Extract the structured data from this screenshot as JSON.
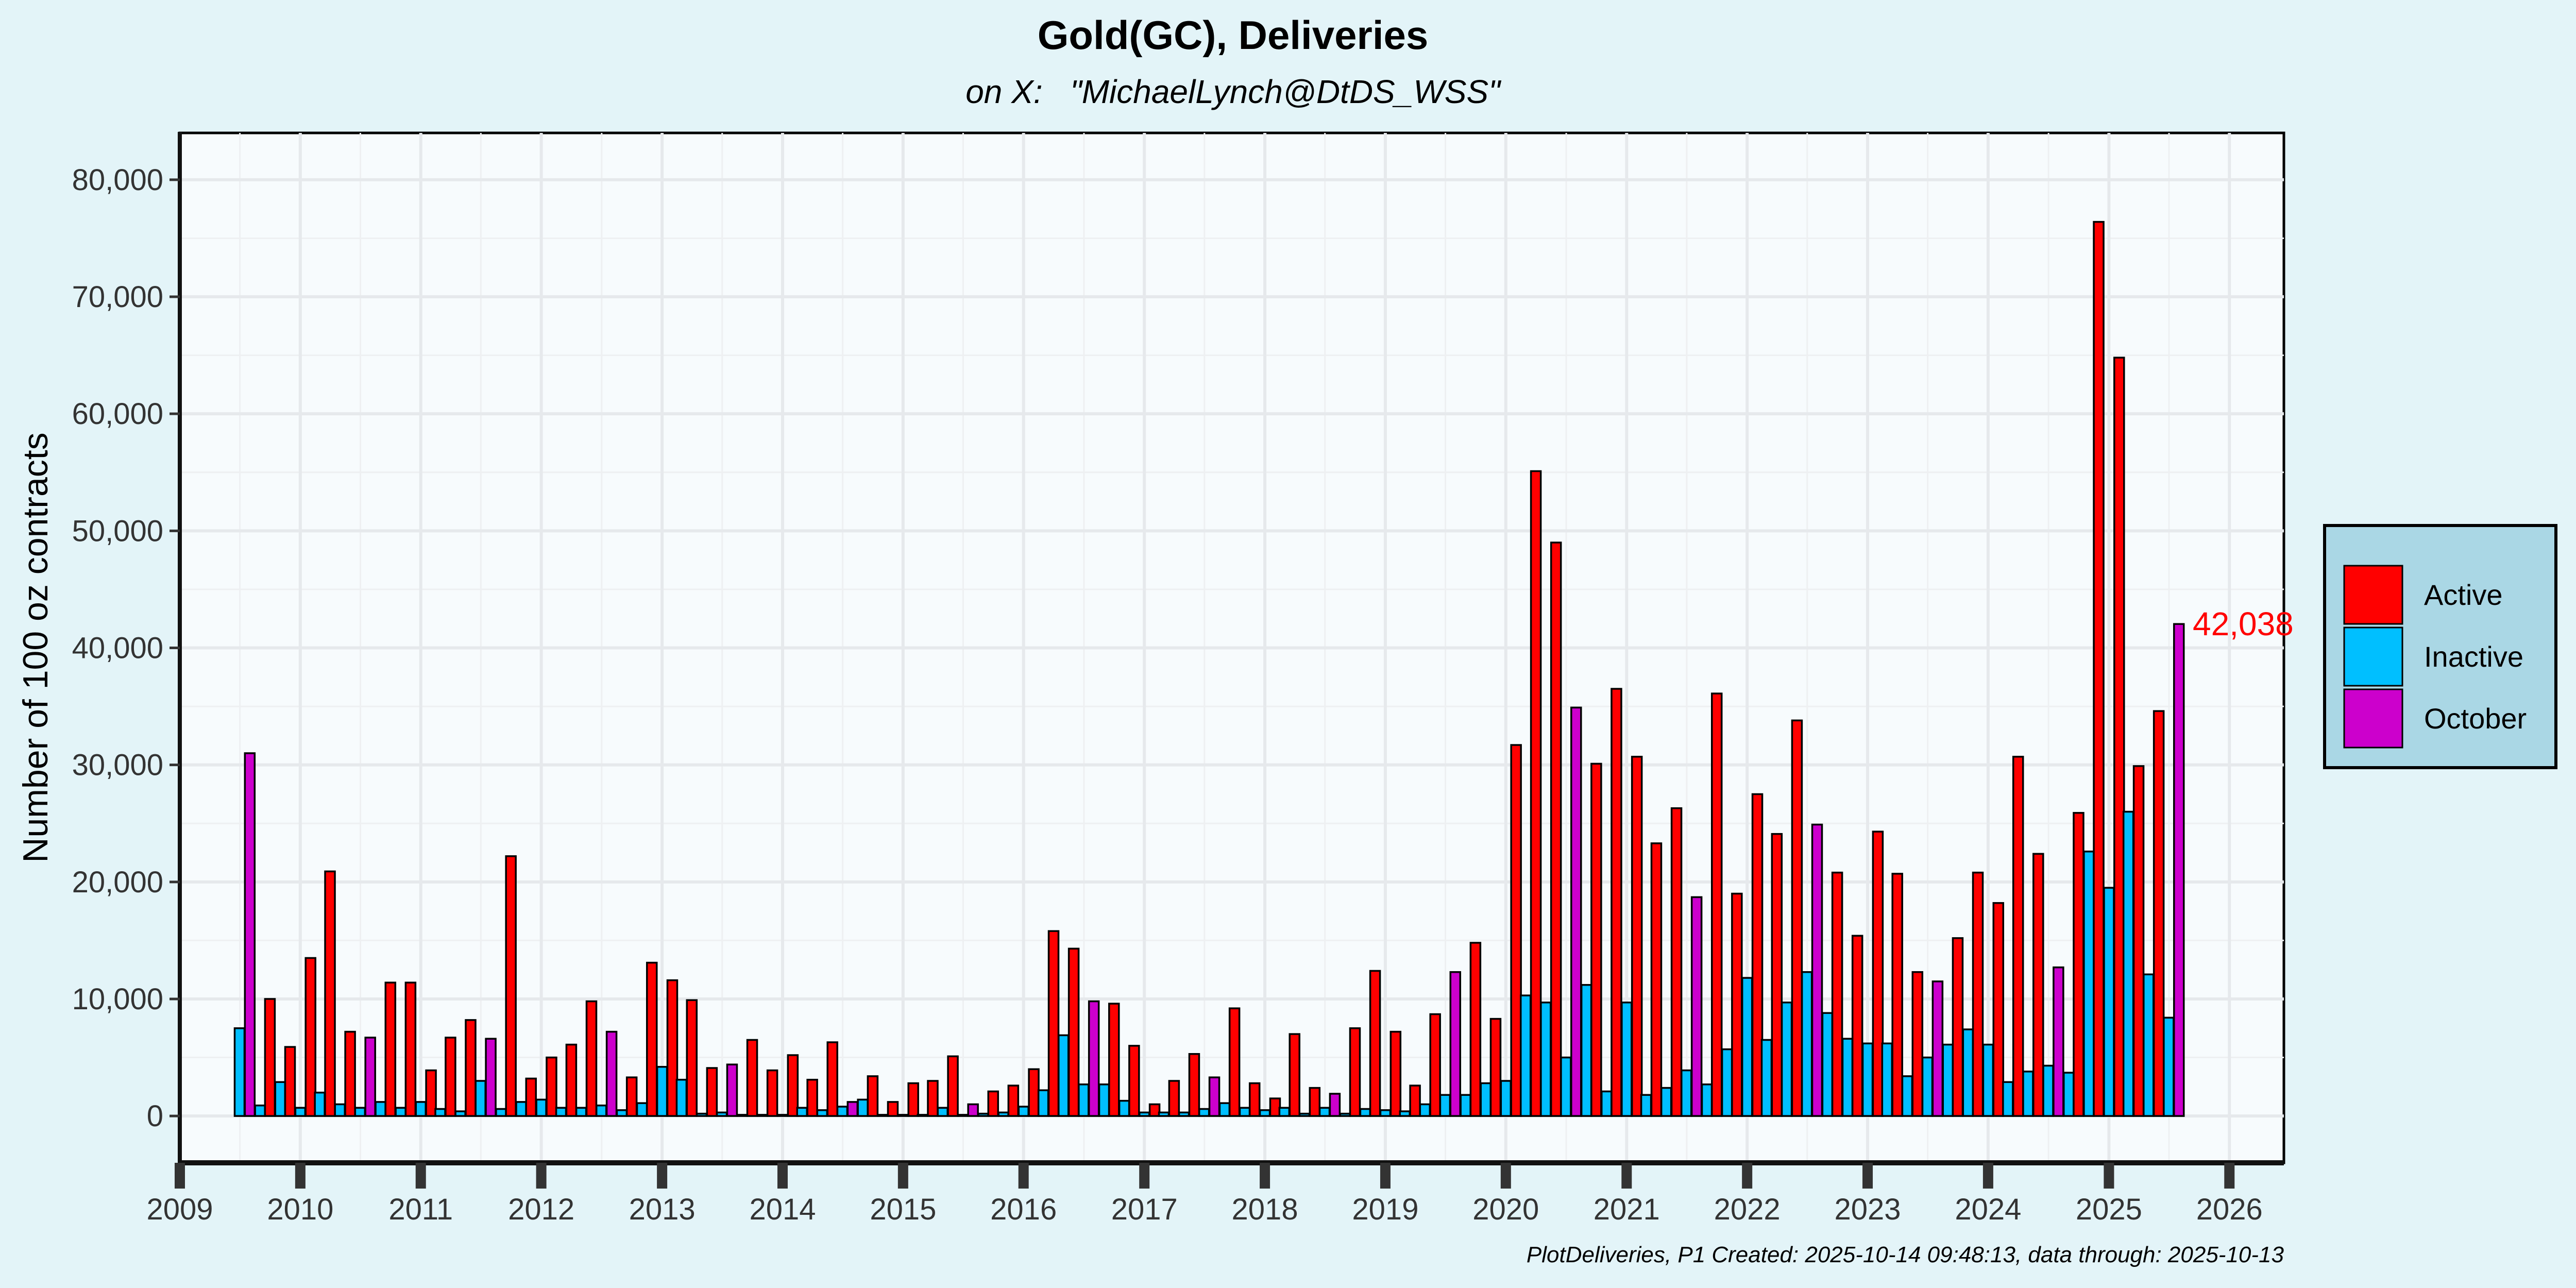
{
  "colors": {
    "Active": "#ff0000",
    "Inactive": "#00bfff",
    "October": "#cc00cc"
  },
  "chart_data": {
    "type": "bar",
    "title": "Gold(GC), Deliveries",
    "subtitle": "on X:   \"MichaelLynch@DtDS_WSS\"",
    "ylabel": "Number of 100 oz contracts",
    "xlabel": "",
    "caption": "PlotDeliveries, P1 Created: 2025-10-14 09:48:13, data through: 2025-10-13",
    "ylim": [
      -4000,
      84000
    ],
    "xlim": [
      "2009-01-01",
      "2026-06-15"
    ],
    "y_ticks": [
      0,
      10000,
      20000,
      30000,
      40000,
      50000,
      60000,
      70000,
      80000
    ],
    "y_tick_labels": [
      "0",
      "10,000",
      "20,000",
      "30,000",
      "40,000",
      "50,000",
      "60,000",
      "70,000",
      "80,000"
    ],
    "x_ticks": [
      "2009",
      "2010",
      "2011",
      "2012",
      "2013",
      "2014",
      "2015",
      "2016",
      "2017",
      "2018",
      "2019",
      "2020",
      "2021",
      "2022",
      "2023",
      "2024",
      "2025",
      "2026"
    ],
    "grid": true,
    "legend_position": "right",
    "legend": [
      "Active",
      "Inactive",
      "October"
    ],
    "annotation": {
      "text": "42,038",
      "x": "2025-10-13",
      "y": 42038
    },
    "bars": [
      {
        "x": "2009-07-01",
        "y": 7500,
        "s": "Inactive"
      },
      {
        "x": "2009-08-01",
        "y": 31000,
        "s": "October"
      },
      {
        "x": "2009-09-01",
        "y": 900,
        "s": "Inactive"
      },
      {
        "x": "2009-10-01",
        "y": 10000,
        "s": "Active"
      },
      {
        "x": "2009-11-01",
        "y": 2900,
        "s": "Inactive"
      },
      {
        "x": "2009-12-01",
        "y": 5900,
        "s": "Active"
      },
      {
        "x": "2010-01-01",
        "y": 700,
        "s": "Inactive"
      },
      {
        "x": "2010-02-01",
        "y": 13500,
        "s": "Active"
      },
      {
        "x": "2010-03-01",
        "y": 2000,
        "s": "Inactive"
      },
      {
        "x": "2010-04-01",
        "y": 20900,
        "s": "Active"
      },
      {
        "x": "2010-05-01",
        "y": 1000,
        "s": "Inactive"
      },
      {
        "x": "2010-06-01",
        "y": 7200,
        "s": "Active"
      },
      {
        "x": "2010-07-01",
        "y": 700,
        "s": "Inactive"
      },
      {
        "x": "2010-08-01",
        "y": 6700,
        "s": "October"
      },
      {
        "x": "2010-09-01",
        "y": 1200,
        "s": "Inactive"
      },
      {
        "x": "2010-10-01",
        "y": 11400,
        "s": "Active"
      },
      {
        "x": "2010-11-01",
        "y": 700,
        "s": "Inactive"
      },
      {
        "x": "2010-12-01",
        "y": 11400,
        "s": "Active"
      },
      {
        "x": "2011-01-01",
        "y": 1200,
        "s": "Inactive"
      },
      {
        "x": "2011-02-01",
        "y": 3900,
        "s": "Active"
      },
      {
        "x": "2011-03-01",
        "y": 600,
        "s": "Inactive"
      },
      {
        "x": "2011-04-01",
        "y": 6700,
        "s": "Active"
      },
      {
        "x": "2011-05-01",
        "y": 400,
        "s": "Inactive"
      },
      {
        "x": "2011-06-01",
        "y": 8200,
        "s": "Active"
      },
      {
        "x": "2011-07-01",
        "y": 3000,
        "s": "Inactive"
      },
      {
        "x": "2011-08-01",
        "y": 6600,
        "s": "October"
      },
      {
        "x": "2011-09-01",
        "y": 600,
        "s": "Inactive"
      },
      {
        "x": "2011-10-01",
        "y": 22200,
        "s": "Active"
      },
      {
        "x": "2011-11-01",
        "y": 1200,
        "s": "Inactive"
      },
      {
        "x": "2011-12-01",
        "y": 3200,
        "s": "Active"
      },
      {
        "x": "2012-01-01",
        "y": 1400,
        "s": "Inactive"
      },
      {
        "x": "2012-02-01",
        "y": 5000,
        "s": "Active"
      },
      {
        "x": "2012-03-01",
        "y": 700,
        "s": "Inactive"
      },
      {
        "x": "2012-04-01",
        "y": 6100,
        "s": "Active"
      },
      {
        "x": "2012-05-01",
        "y": 700,
        "s": "Inactive"
      },
      {
        "x": "2012-06-01",
        "y": 9800,
        "s": "Active"
      },
      {
        "x": "2012-07-01",
        "y": 900,
        "s": "Inactive"
      },
      {
        "x": "2012-08-01",
        "y": 7200,
        "s": "October"
      },
      {
        "x": "2012-09-01",
        "y": 500,
        "s": "Inactive"
      },
      {
        "x": "2012-10-01",
        "y": 3300,
        "s": "Active"
      },
      {
        "x": "2012-11-01",
        "y": 1100,
        "s": "Inactive"
      },
      {
        "x": "2012-12-01",
        "y": 13100,
        "s": "Active"
      },
      {
        "x": "2013-01-01",
        "y": 4200,
        "s": "Inactive"
      },
      {
        "x": "2013-02-01",
        "y": 11600,
        "s": "Active"
      },
      {
        "x": "2013-03-01",
        "y": 3100,
        "s": "Inactive"
      },
      {
        "x": "2013-04-01",
        "y": 9900,
        "s": "Active"
      },
      {
        "x": "2013-05-01",
        "y": 200,
        "s": "Inactive"
      },
      {
        "x": "2013-06-01",
        "y": 4100,
        "s": "Active"
      },
      {
        "x": "2013-07-01",
        "y": 300,
        "s": "Inactive"
      },
      {
        "x": "2013-08-01",
        "y": 4400,
        "s": "October"
      },
      {
        "x": "2013-09-01",
        "y": 100,
        "s": "Inactive"
      },
      {
        "x": "2013-10-01",
        "y": 6500,
        "s": "Active"
      },
      {
        "x": "2013-11-01",
        "y": 100,
        "s": "Inactive"
      },
      {
        "x": "2013-12-01",
        "y": 3900,
        "s": "Active"
      },
      {
        "x": "2014-01-01",
        "y": 100,
        "s": "Inactive"
      },
      {
        "x": "2014-02-01",
        "y": 5200,
        "s": "Active"
      },
      {
        "x": "2014-03-01",
        "y": 700,
        "s": "Inactive"
      },
      {
        "x": "2014-04-01",
        "y": 3100,
        "s": "Active"
      },
      {
        "x": "2014-05-01",
        "y": 500,
        "s": "Inactive"
      },
      {
        "x": "2014-06-01",
        "y": 6300,
        "s": "Active"
      },
      {
        "x": "2014-07-01",
        "y": 800,
        "s": "Inactive"
      },
      {
        "x": "2014-08-01",
        "y": 1200,
        "s": "October"
      },
      {
        "x": "2014-09-01",
        "y": 1400,
        "s": "Inactive"
      },
      {
        "x": "2014-10-01",
        "y": 3400,
        "s": "Active"
      },
      {
        "x": "2014-11-01",
        "y": 100,
        "s": "Inactive"
      },
      {
        "x": "2014-12-01",
        "y": 1200,
        "s": "Active"
      },
      {
        "x": "2015-01-01",
        "y": 100,
        "s": "Inactive"
      },
      {
        "x": "2015-02-01",
        "y": 2800,
        "s": "Active"
      },
      {
        "x": "2015-03-01",
        "y": 100,
        "s": "Inactive"
      },
      {
        "x": "2015-04-01",
        "y": 3000,
        "s": "Active"
      },
      {
        "x": "2015-05-01",
        "y": 700,
        "s": "Inactive"
      },
      {
        "x": "2015-06-01",
        "y": 5100,
        "s": "Active"
      },
      {
        "x": "2015-07-01",
        "y": 100,
        "s": "Inactive"
      },
      {
        "x": "2015-08-01",
        "y": 1000,
        "s": "October"
      },
      {
        "x": "2015-09-01",
        "y": 200,
        "s": "Inactive"
      },
      {
        "x": "2015-10-01",
        "y": 2100,
        "s": "Active"
      },
      {
        "x": "2015-11-01",
        "y": 300,
        "s": "Inactive"
      },
      {
        "x": "2015-12-01",
        "y": 2600,
        "s": "Active"
      },
      {
        "x": "2016-01-01",
        "y": 800,
        "s": "Inactive"
      },
      {
        "x": "2016-02-01",
        "y": 4000,
        "s": "Active"
      },
      {
        "x": "2016-03-01",
        "y": 2200,
        "s": "Inactive"
      },
      {
        "x": "2016-04-01",
        "y": 15800,
        "s": "Active"
      },
      {
        "x": "2016-05-01",
        "y": 6900,
        "s": "Inactive"
      },
      {
        "x": "2016-06-01",
        "y": 14300,
        "s": "Active"
      },
      {
        "x": "2016-07-01",
        "y": 2700,
        "s": "Inactive"
      },
      {
        "x": "2016-08-01",
        "y": 9800,
        "s": "October"
      },
      {
        "x": "2016-09-01",
        "y": 2700,
        "s": "Inactive"
      },
      {
        "x": "2016-10-01",
        "y": 9600,
        "s": "Active"
      },
      {
        "x": "2016-11-01",
        "y": 1300,
        "s": "Inactive"
      },
      {
        "x": "2016-12-01",
        "y": 6000,
        "s": "Active"
      },
      {
        "x": "2017-01-01",
        "y": 300,
        "s": "Inactive"
      },
      {
        "x": "2017-02-01",
        "y": 1000,
        "s": "Active"
      },
      {
        "x": "2017-03-01",
        "y": 300,
        "s": "Inactive"
      },
      {
        "x": "2017-04-01",
        "y": 3000,
        "s": "Active"
      },
      {
        "x": "2017-05-01",
        "y": 300,
        "s": "Inactive"
      },
      {
        "x": "2017-06-01",
        "y": 5300,
        "s": "Active"
      },
      {
        "x": "2017-07-01",
        "y": 600,
        "s": "Inactive"
      },
      {
        "x": "2017-08-01",
        "y": 3300,
        "s": "October"
      },
      {
        "x": "2017-09-01",
        "y": 1100,
        "s": "Inactive"
      },
      {
        "x": "2017-10-01",
        "y": 9200,
        "s": "Active"
      },
      {
        "x": "2017-11-01",
        "y": 700,
        "s": "Inactive"
      },
      {
        "x": "2017-12-01",
        "y": 2800,
        "s": "Active"
      },
      {
        "x": "2018-01-01",
        "y": 500,
        "s": "Inactive"
      },
      {
        "x": "2018-02-01",
        "y": 1500,
        "s": "Active"
      },
      {
        "x": "2018-03-01",
        "y": 700,
        "s": "Inactive"
      },
      {
        "x": "2018-04-01",
        "y": 7000,
        "s": "Active"
      },
      {
        "x": "2018-05-01",
        "y": 200,
        "s": "Inactive"
      },
      {
        "x": "2018-06-01",
        "y": 2400,
        "s": "Active"
      },
      {
        "x": "2018-07-01",
        "y": 700,
        "s": "Inactive"
      },
      {
        "x": "2018-08-01",
        "y": 1900,
        "s": "October"
      },
      {
        "x": "2018-09-01",
        "y": 200,
        "s": "Inactive"
      },
      {
        "x": "2018-10-01",
        "y": 7500,
        "s": "Active"
      },
      {
        "x": "2018-11-01",
        "y": 600,
        "s": "Inactive"
      },
      {
        "x": "2018-12-01",
        "y": 12400,
        "s": "Active"
      },
      {
        "x": "2019-01-01",
        "y": 500,
        "s": "Inactive"
      },
      {
        "x": "2019-02-01",
        "y": 7200,
        "s": "Active"
      },
      {
        "x": "2019-03-01",
        "y": 400,
        "s": "Inactive"
      },
      {
        "x": "2019-04-01",
        "y": 2600,
        "s": "Active"
      },
      {
        "x": "2019-05-01",
        "y": 1000,
        "s": "Inactive"
      },
      {
        "x": "2019-06-01",
        "y": 8700,
        "s": "Active"
      },
      {
        "x": "2019-07-01",
        "y": 1800,
        "s": "Inactive"
      },
      {
        "x": "2019-08-01",
        "y": 12300,
        "s": "October"
      },
      {
        "x": "2019-09-01",
        "y": 1800,
        "s": "Inactive"
      },
      {
        "x": "2019-10-01",
        "y": 14800,
        "s": "Active"
      },
      {
        "x": "2019-11-01",
        "y": 2800,
        "s": "Inactive"
      },
      {
        "x": "2019-12-01",
        "y": 8300,
        "s": "Active"
      },
      {
        "x": "2020-01-01",
        "y": 3000,
        "s": "Inactive"
      },
      {
        "x": "2020-02-01",
        "y": 31700,
        "s": "Active"
      },
      {
        "x": "2020-03-01",
        "y": 10300,
        "s": "Inactive"
      },
      {
        "x": "2020-04-01",
        "y": 55100,
        "s": "Active"
      },
      {
        "x": "2020-05-01",
        "y": 9700,
        "s": "Inactive"
      },
      {
        "x": "2020-06-01",
        "y": 49000,
        "s": "Active"
      },
      {
        "x": "2020-07-01",
        "y": 5000,
        "s": "Inactive"
      },
      {
        "x": "2020-08-01",
        "y": 34900,
        "s": "October"
      },
      {
        "x": "2020-09-01",
        "y": 11200,
        "s": "Inactive"
      },
      {
        "x": "2020-10-01",
        "y": 30100,
        "s": "Active"
      },
      {
        "x": "2020-11-01",
        "y": 2100,
        "s": "Inactive"
      },
      {
        "x": "2020-12-01",
        "y": 36500,
        "s": "Active"
      },
      {
        "x": "2021-01-01",
        "y": 9700,
        "s": "Inactive"
      },
      {
        "x": "2021-02-01",
        "y": 30700,
        "s": "Active"
      },
      {
        "x": "2021-03-01",
        "y": 1800,
        "s": "Inactive"
      },
      {
        "x": "2021-04-01",
        "y": 23300,
        "s": "Active"
      },
      {
        "x": "2021-05-01",
        "y": 2400,
        "s": "Inactive"
      },
      {
        "x": "2021-06-01",
        "y": 26300,
        "s": "Active"
      },
      {
        "x": "2021-07-01",
        "y": 3900,
        "s": "Inactive"
      },
      {
        "x": "2021-08-01",
        "y": 18700,
        "s": "October"
      },
      {
        "x": "2021-09-01",
        "y": 2700,
        "s": "Inactive"
      },
      {
        "x": "2021-10-01",
        "y": 36100,
        "s": "Active"
      },
      {
        "x": "2021-11-01",
        "y": 5700,
        "s": "Inactive"
      },
      {
        "x": "2021-12-01",
        "y": 19000,
        "s": "Active"
      },
      {
        "x": "2022-01-01",
        "y": 11800,
        "s": "Inactive"
      },
      {
        "x": "2022-02-01",
        "y": 27500,
        "s": "Active"
      },
      {
        "x": "2022-03-01",
        "y": 6500,
        "s": "Inactive"
      },
      {
        "x": "2022-04-01",
        "y": 24100,
        "s": "Active"
      },
      {
        "x": "2022-05-01",
        "y": 9700,
        "s": "Inactive"
      },
      {
        "x": "2022-06-01",
        "y": 33800,
        "s": "Active"
      },
      {
        "x": "2022-07-01",
        "y": 12300,
        "s": "Inactive"
      },
      {
        "x": "2022-08-01",
        "y": 24900,
        "s": "October"
      },
      {
        "x": "2022-09-01",
        "y": 8800,
        "s": "Inactive"
      },
      {
        "x": "2022-10-01",
        "y": 20800,
        "s": "Active"
      },
      {
        "x": "2022-11-01",
        "y": 6600,
        "s": "Inactive"
      },
      {
        "x": "2022-12-01",
        "y": 15400,
        "s": "Active"
      },
      {
        "x": "2023-01-01",
        "y": 6200,
        "s": "Inactive"
      },
      {
        "x": "2023-02-01",
        "y": 24300,
        "s": "Active"
      },
      {
        "x": "2023-03-01",
        "y": 6200,
        "s": "Inactive"
      },
      {
        "x": "2023-04-01",
        "y": 20700,
        "s": "Active"
      },
      {
        "x": "2023-05-01",
        "y": 3400,
        "s": "Inactive"
      },
      {
        "x": "2023-06-01",
        "y": 12300,
        "s": "Active"
      },
      {
        "x": "2023-07-01",
        "y": 5000,
        "s": "Inactive"
      },
      {
        "x": "2023-08-01",
        "y": 11500,
        "s": "October"
      },
      {
        "x": "2023-09-01",
        "y": 6100,
        "s": "Inactive"
      },
      {
        "x": "2023-10-01",
        "y": 15200,
        "s": "Active"
      },
      {
        "x": "2023-11-01",
        "y": 7400,
        "s": "Inactive"
      },
      {
        "x": "2023-12-01",
        "y": 20800,
        "s": "Active"
      },
      {
        "x": "2024-01-01",
        "y": 6100,
        "s": "Inactive"
      },
      {
        "x": "2024-02-01",
        "y": 18200,
        "s": "Active"
      },
      {
        "x": "2024-03-01",
        "y": 2900,
        "s": "Inactive"
      },
      {
        "x": "2024-04-01",
        "y": 30700,
        "s": "Active"
      },
      {
        "x": "2024-05-01",
        "y": 3800,
        "s": "Inactive"
      },
      {
        "x": "2024-06-01",
        "y": 22400,
        "s": "Active"
      },
      {
        "x": "2024-07-01",
        "y": 4300,
        "s": "Inactive"
      },
      {
        "x": "2024-08-01",
        "y": 12700,
        "s": "October"
      },
      {
        "x": "2024-09-01",
        "y": 3700,
        "s": "Inactive"
      },
      {
        "x": "2024-10-01",
        "y": 25900,
        "s": "Active"
      },
      {
        "x": "2024-11-01",
        "y": 22600,
        "s": "Inactive"
      },
      {
        "x": "2024-12-01",
        "y": 76400,
        "s": "Active"
      },
      {
        "x": "2025-01-01",
        "y": 19500,
        "s": "Inactive"
      },
      {
        "x": "2025-02-01",
        "y": 64800,
        "s": "Active"
      },
      {
        "x": "2025-03-01",
        "y": 26000,
        "s": "Inactive"
      },
      {
        "x": "2025-04-01",
        "y": 29900,
        "s": "Active"
      },
      {
        "x": "2025-05-01",
        "y": 12100,
        "s": "Inactive"
      },
      {
        "x": "2025-06-01",
        "y": 34600,
        "s": "Active"
      },
      {
        "x": "2025-07-01",
        "y": 8400,
        "s": "Inactive"
      },
      {
        "x": "2025-08-01",
        "y": 42038,
        "s": "October"
      }
    ]
  }
}
